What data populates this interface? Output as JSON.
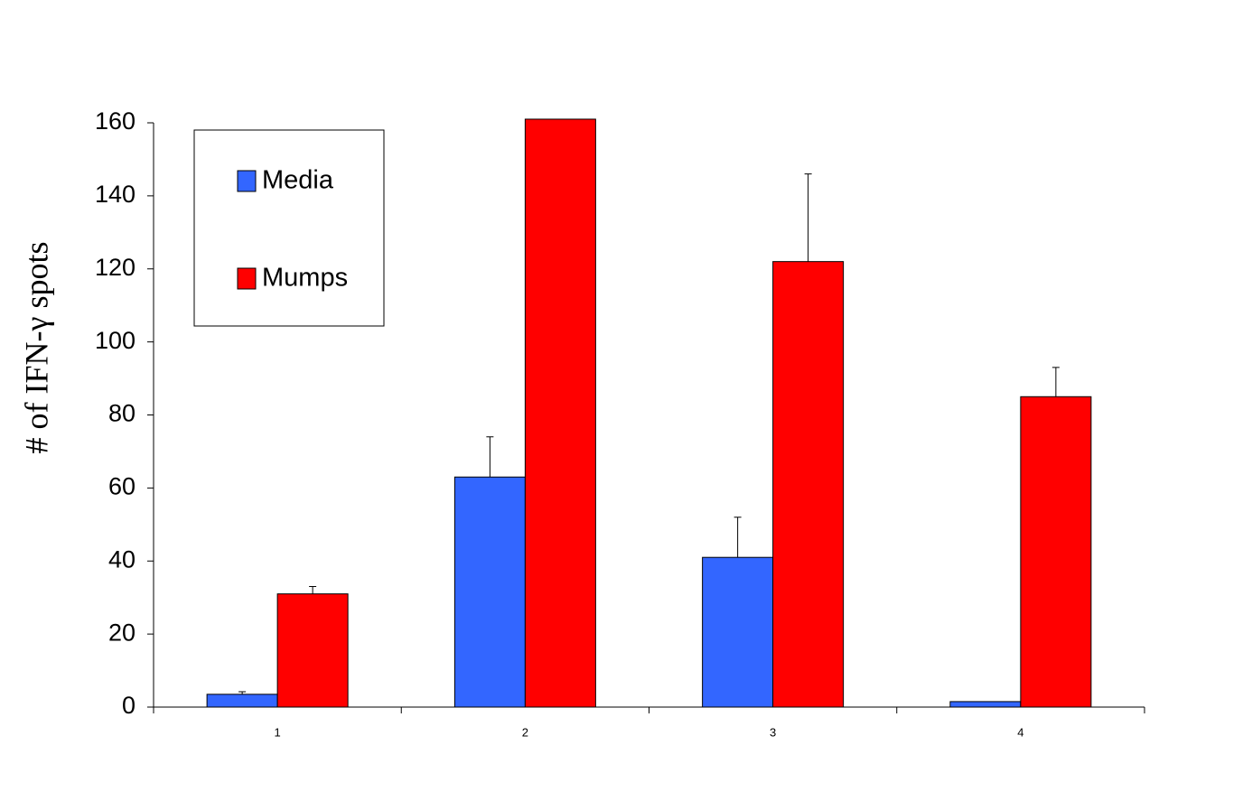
{
  "chart_data": {
    "type": "bar",
    "y_label": "# of IFN-γ spots",
    "categories": [
      "1",
      "2",
      "3",
      "4"
    ],
    "series": [
      {
        "name": "Media",
        "color": "#3366ff",
        "values": [
          3.5,
          63,
          41,
          1.5
        ],
        "errors": [
          0.7,
          11,
          11,
          null
        ]
      },
      {
        "name": "Mumps",
        "color": "#ff0000",
        "values": [
          31,
          161,
          122,
          85
        ],
        "errors": [
          2,
          null,
          24,
          8
        ]
      }
    ],
    "ylim": [
      0,
      160
    ],
    "yticks": [
      0,
      20,
      40,
      60,
      80,
      100,
      120,
      140,
      160
    ]
  }
}
